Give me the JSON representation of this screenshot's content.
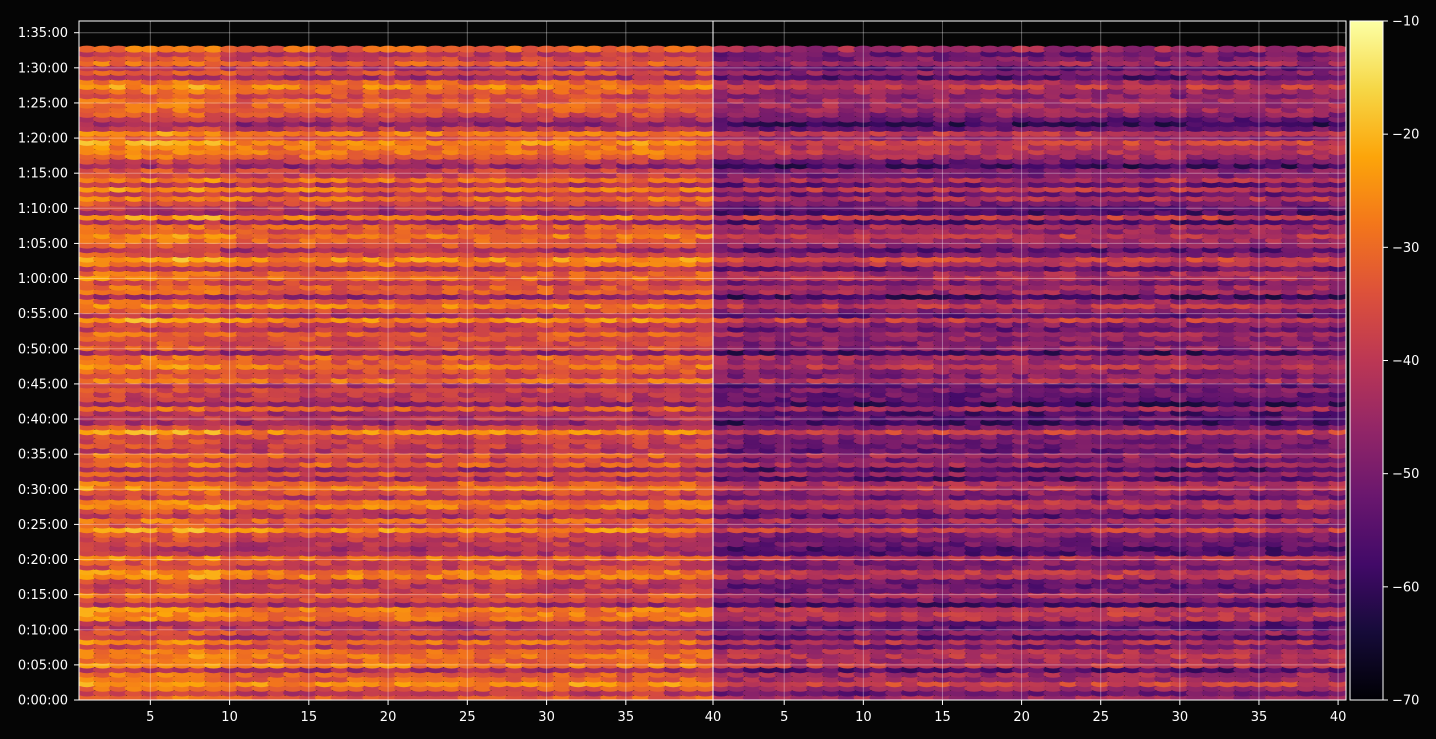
{
  "chart_data": {
    "type": "heatmap",
    "title": "",
    "xlabel": "",
    "ylabel": "",
    "grid": true,
    "panels": [
      {
        "name": "",
        "x_range": [
          1,
          40
        ],
        "x_ticks": [
          5,
          10,
          15,
          20,
          25,
          30,
          35
        ],
        "overall_level_db": -36
      },
      {
        "name": "",
        "x_range": [
          1,
          40
        ],
        "x_ticks": [
          5,
          10,
          15,
          20,
          25,
          30,
          35,
          40
        ],
        "overall_level_db": -48
      }
    ],
    "shared_x_tick_label": "40",
    "y_range_seconds": [
      0,
      5800
    ],
    "y_ticks": [
      {
        "seconds": 0,
        "label": "0:00:00"
      },
      {
        "seconds": 300,
        "label": "0:05:00"
      },
      {
        "seconds": 600,
        "label": "0:10:00"
      },
      {
        "seconds": 900,
        "label": "0:15:00"
      },
      {
        "seconds": 1200,
        "label": "0:20:00"
      },
      {
        "seconds": 1500,
        "label": "0:25:00"
      },
      {
        "seconds": 1800,
        "label": "0:30:00"
      },
      {
        "seconds": 2100,
        "label": "0:35:00"
      },
      {
        "seconds": 2400,
        "label": "0:40:00"
      },
      {
        "seconds": 2700,
        "label": "0:45:00"
      },
      {
        "seconds": 3000,
        "label": "0:50:00"
      },
      {
        "seconds": 3300,
        "label": "0:55:00"
      },
      {
        "seconds": 3600,
        "label": "1:00:00"
      },
      {
        "seconds": 3900,
        "label": "1:05:00"
      },
      {
        "seconds": 4200,
        "label": "1:10:00"
      },
      {
        "seconds": 4500,
        "label": "1:15:00"
      },
      {
        "seconds": 4800,
        "label": "1:20:00"
      },
      {
        "seconds": 5100,
        "label": "1:25:00"
      },
      {
        "seconds": 5400,
        "label": "1:30:00"
      },
      {
        "seconds": 5700,
        "label": "1:35:00"
      }
    ],
    "data_y_extent_seconds": [
      0,
      5580
    ],
    "colorbar": {
      "colormap": "inferno",
      "min": -70,
      "max": -10,
      "ticks": [
        -70,
        -60,
        -50,
        -40,
        -30,
        -20,
        -10
      ],
      "tick_labels": [
        "−70",
        "−60",
        "−50",
        "−40",
        "−30",
        "−20",
        "−10"
      ]
    },
    "colors": {
      "background": "#050505",
      "axis": "#ffffff",
      "grid": "rgba(255,255,255,0.35)"
    }
  }
}
